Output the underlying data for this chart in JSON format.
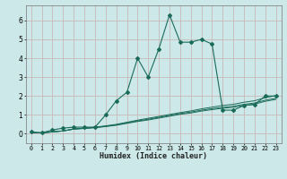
{
  "xlabel": "Humidex (Indice chaleur)",
  "background_color": "#cce8e8",
  "plot_bg_color": "#cce8e8",
  "line_color": "#1a6b5a",
  "grid_color": "#c8b8b8",
  "x_humidex": [
    0,
    1,
    2,
    3,
    4,
    5,
    6,
    7,
    8,
    9,
    10,
    11,
    12,
    13,
    14,
    15,
    16,
    17,
    18,
    19,
    20,
    21,
    22,
    23
  ],
  "curve_main": [
    0.1,
    0.05,
    0.2,
    0.3,
    0.35,
    0.35,
    0.35,
    1.0,
    1.75,
    2.2,
    4.0,
    3.0,
    4.5,
    6.3,
    4.85,
    4.85,
    5.0,
    4.75,
    1.25,
    1.25,
    1.5,
    1.55,
    2.0,
    2.0
  ],
  "curve_line1": [
    0.05,
    0.05,
    0.1,
    0.15,
    0.25,
    0.28,
    0.32,
    0.38,
    0.45,
    0.55,
    0.65,
    0.73,
    0.83,
    0.93,
    1.03,
    1.1,
    1.2,
    1.28,
    1.35,
    1.4,
    1.5,
    1.57,
    1.72,
    1.82
  ],
  "curve_line2": [
    0.05,
    0.05,
    0.1,
    0.15,
    0.25,
    0.29,
    0.33,
    0.4,
    0.47,
    0.58,
    0.68,
    0.77,
    0.87,
    0.97,
    1.07,
    1.15,
    1.25,
    1.33,
    1.4,
    1.46,
    1.56,
    1.63,
    1.78,
    1.88
  ],
  "curve_line3": [
    0.05,
    0.05,
    0.1,
    0.15,
    0.25,
    0.3,
    0.35,
    0.42,
    0.5,
    0.61,
    0.72,
    0.82,
    0.92,
    1.02,
    1.12,
    1.21,
    1.32,
    1.41,
    1.5,
    1.56,
    1.67,
    1.75,
    1.91,
    2.02
  ],
  "ylim": [
    -0.5,
    6.8
  ],
  "xlim": [
    -0.5,
    23.5
  ],
  "yticks": [
    0,
    1,
    2,
    3,
    4,
    5,
    6
  ]
}
